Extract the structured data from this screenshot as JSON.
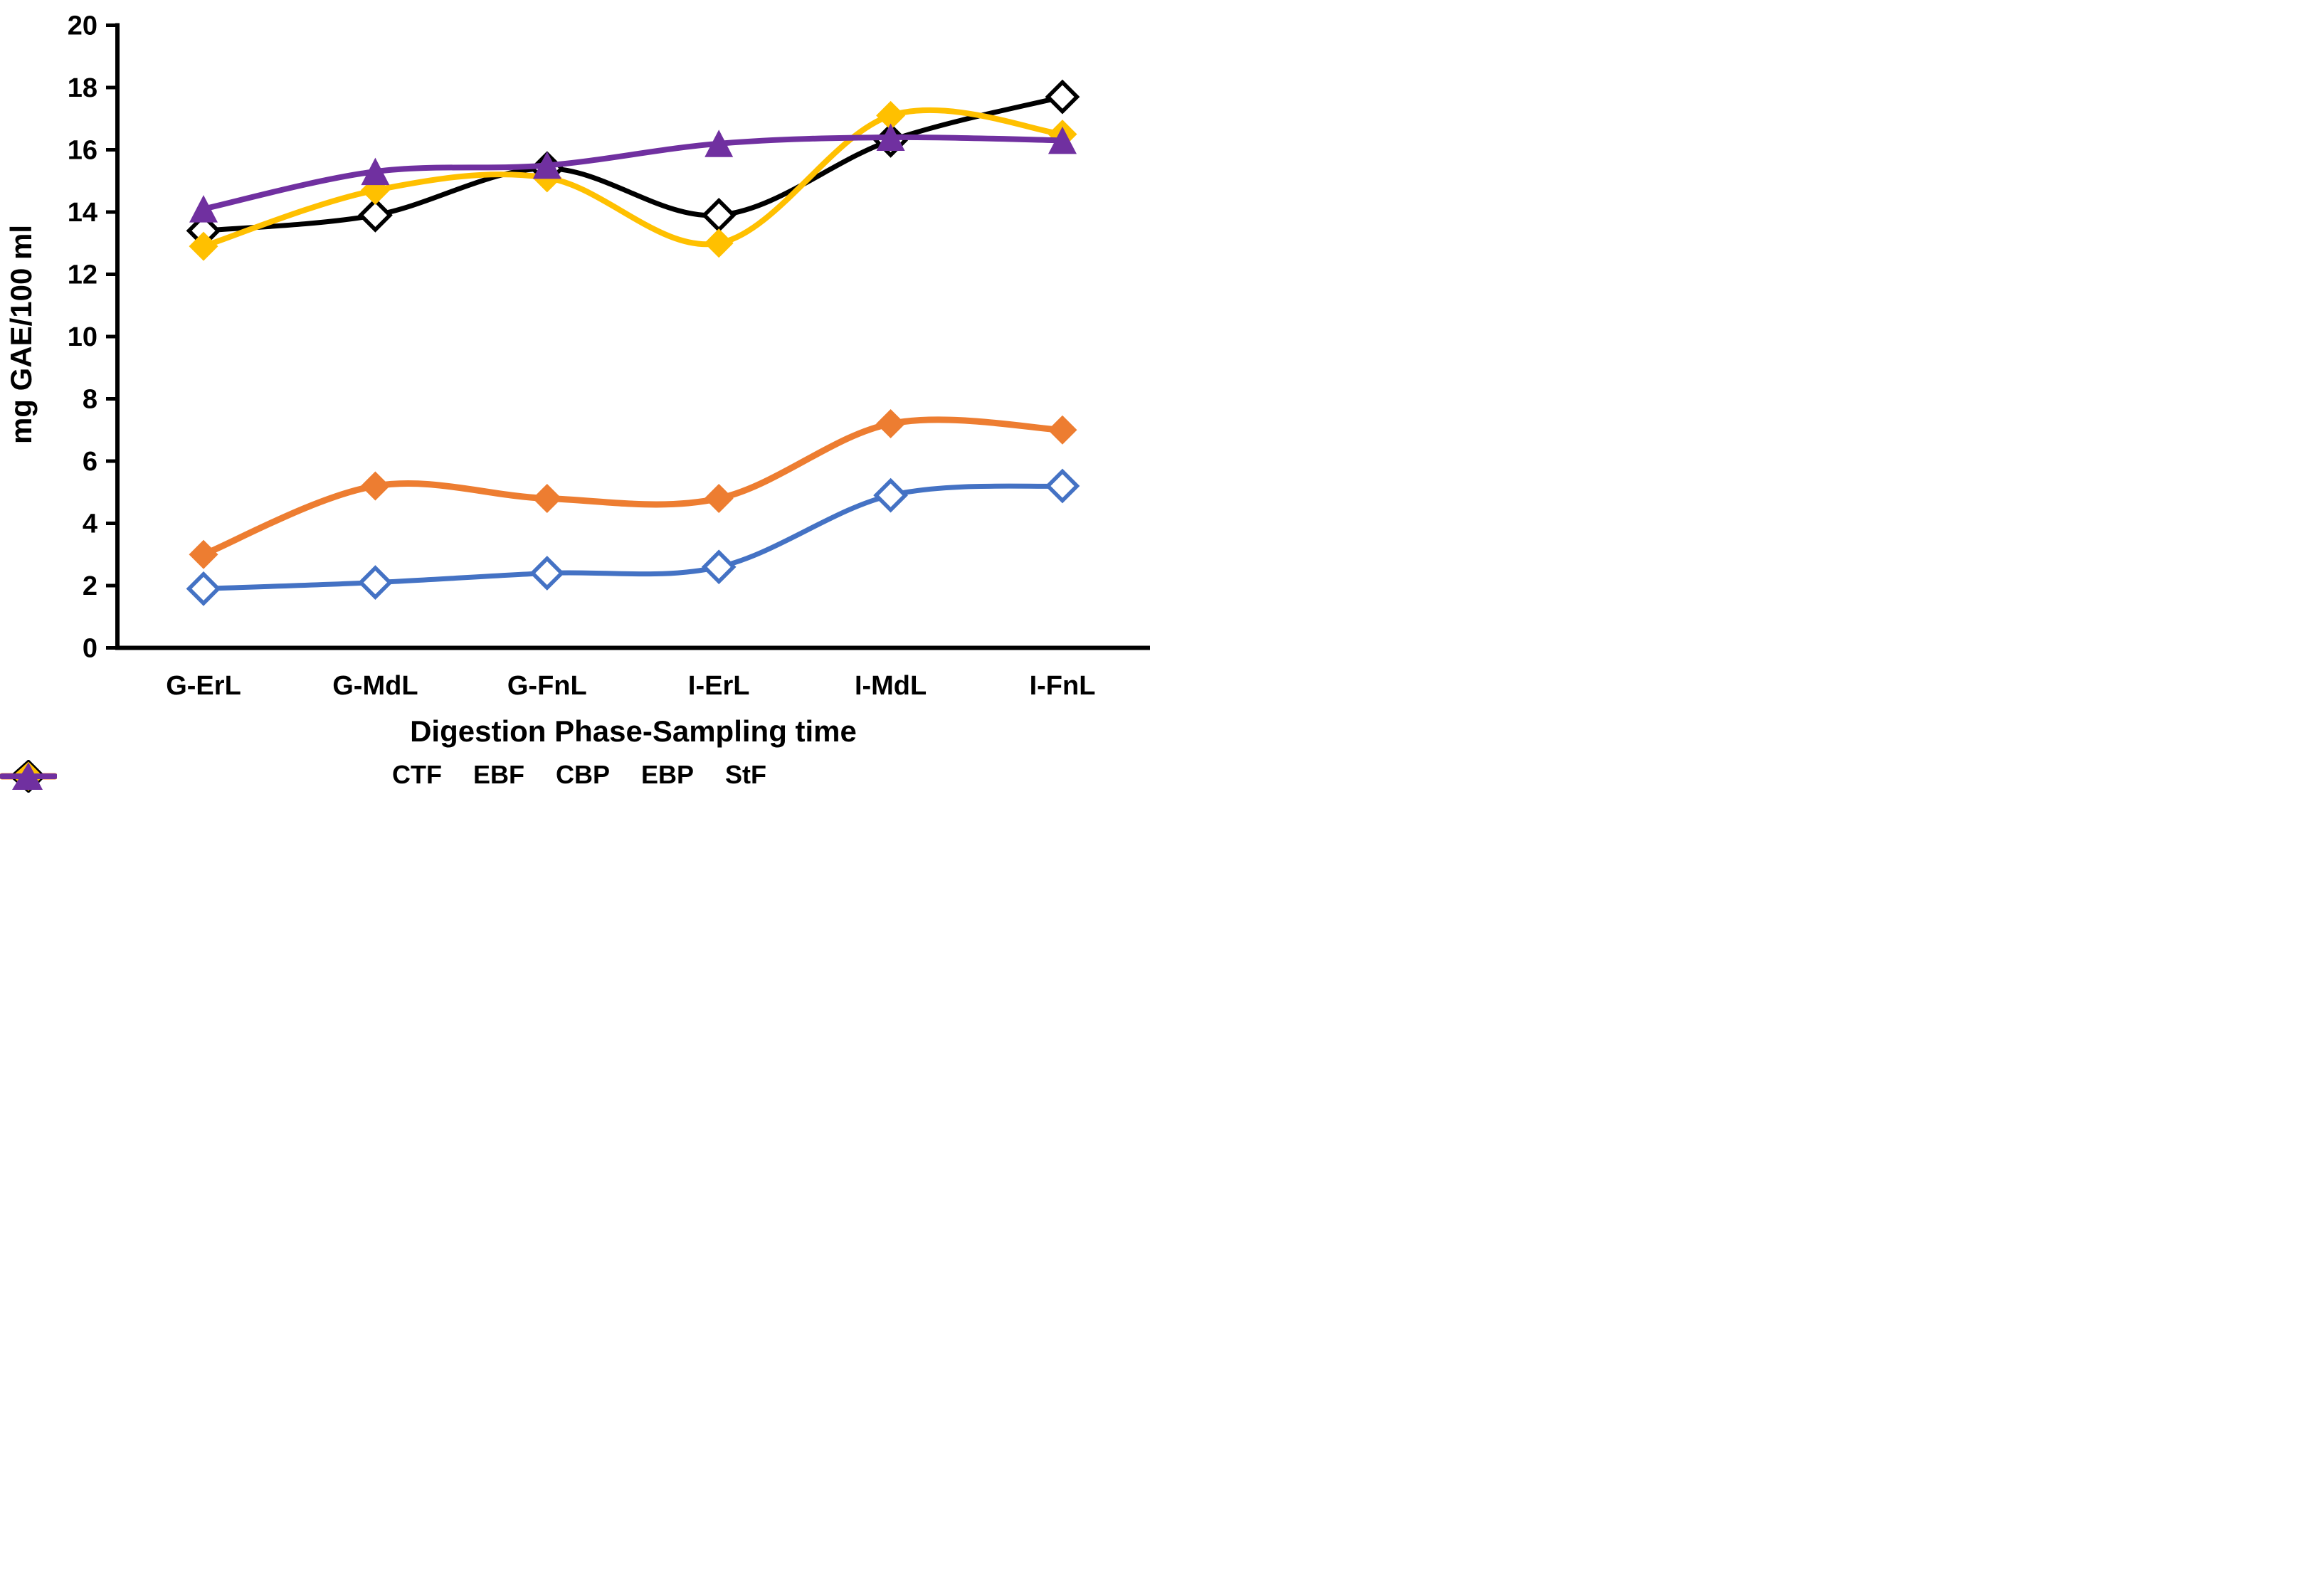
{
  "figure": {
    "x_axis_title": "Digestion Phase-Sampling time",
    "y_axis_title": "mg GAE/100 ml"
  },
  "chart_data": {
    "type": "line",
    "smooth": true,
    "title": "",
    "categories": [
      "G-ErL",
      "G-MdL",
      "G-FnL",
      "I-ErL",
      "I-MdL",
      "I-FnL"
    ],
    "series": [
      {
        "name": "CTF",
        "color": "#4472C4",
        "marker": "open-diamond",
        "values": [
          1.9,
          2.1,
          2.4,
          2.6,
          4.9,
          5.2
        ]
      },
      {
        "name": "EBF",
        "color": "#ED7D31",
        "marker": "filled-diamond",
        "values": [
          3.0,
          5.2,
          4.8,
          4.8,
          7.2,
          7.0
        ]
      },
      {
        "name": "CBP",
        "color": "#000000",
        "marker": "open-diamond",
        "values": [
          13.4,
          13.9,
          15.4,
          13.9,
          16.3,
          17.7
        ]
      },
      {
        "name": "EBP",
        "color": "#FFC000",
        "marker": "filled-diamond",
        "values": [
          12.9,
          14.7,
          15.1,
          13.0,
          17.1,
          16.5
        ]
      },
      {
        "name": "StF",
        "color": "#7030A0",
        "marker": "filled-triangle",
        "values": [
          14.1,
          15.3,
          15.5,
          16.2,
          16.4,
          16.3
        ]
      }
    ],
    "xlabel": "Digestion Phase-Sampling time",
    "ylabel": "mg GAE/100 ml",
    "ylim": [
      0,
      20
    ],
    "ytick_step": 2,
    "yticks": [
      0,
      2,
      4,
      6,
      8,
      10,
      12,
      14,
      16,
      18,
      20
    ],
    "grid": false,
    "legend_position": "bottom",
    "axis_color": "#000000",
    "background": "#FFFFFF"
  }
}
